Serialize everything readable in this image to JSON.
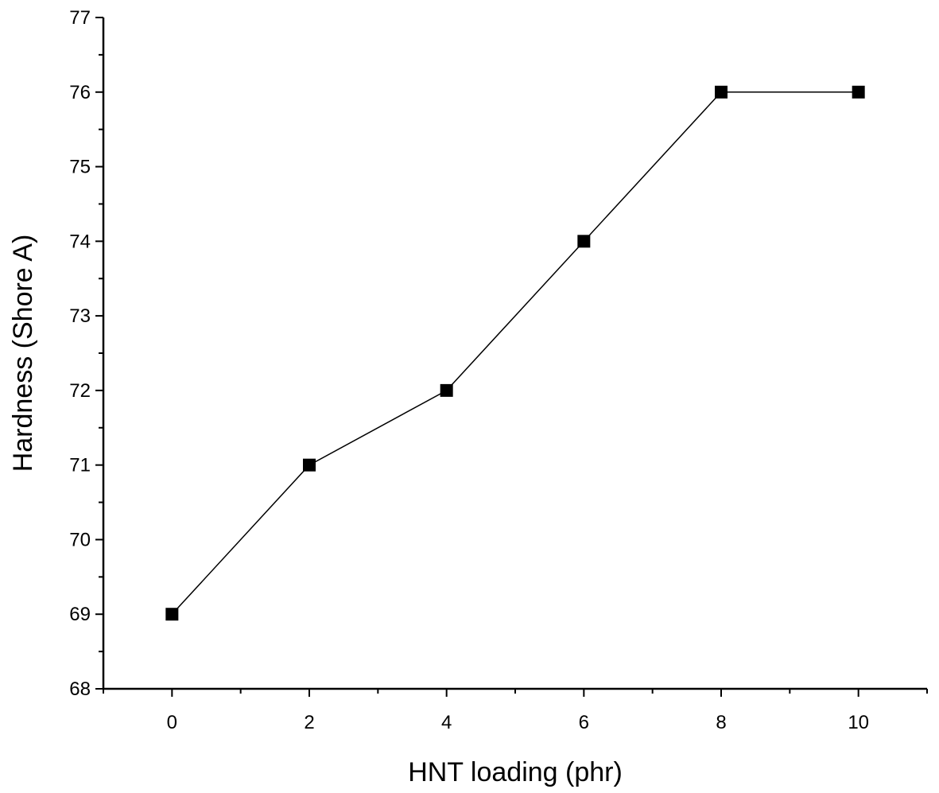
{
  "chart_data": {
    "type": "line",
    "title": "",
    "xlabel": "HNT loading (phr)",
    "ylabel": "Hardness (Shore A)",
    "xlim": [
      -1,
      11
    ],
    "ylim": [
      68,
      77
    ],
    "x_ticks": [
      0,
      2,
      4,
      6,
      8,
      10
    ],
    "x_tick_labels": [
      "0",
      "2",
      "4",
      "6",
      "8",
      "10"
    ],
    "y_ticks": [
      68,
      69,
      70,
      71,
      72,
      73,
      74,
      75,
      76,
      77
    ],
    "y_tick_labels": [
      "68",
      "69",
      "70",
      "71",
      "72",
      "73",
      "74",
      "75",
      "76",
      "77"
    ],
    "grid": false,
    "legend": "none",
    "marker": "square",
    "series": [
      {
        "color": "#000000",
        "x": [
          0,
          2,
          4,
          6,
          8,
          10
        ],
        "values": [
          69,
          71,
          72,
          74,
          76,
          76
        ]
      }
    ]
  }
}
